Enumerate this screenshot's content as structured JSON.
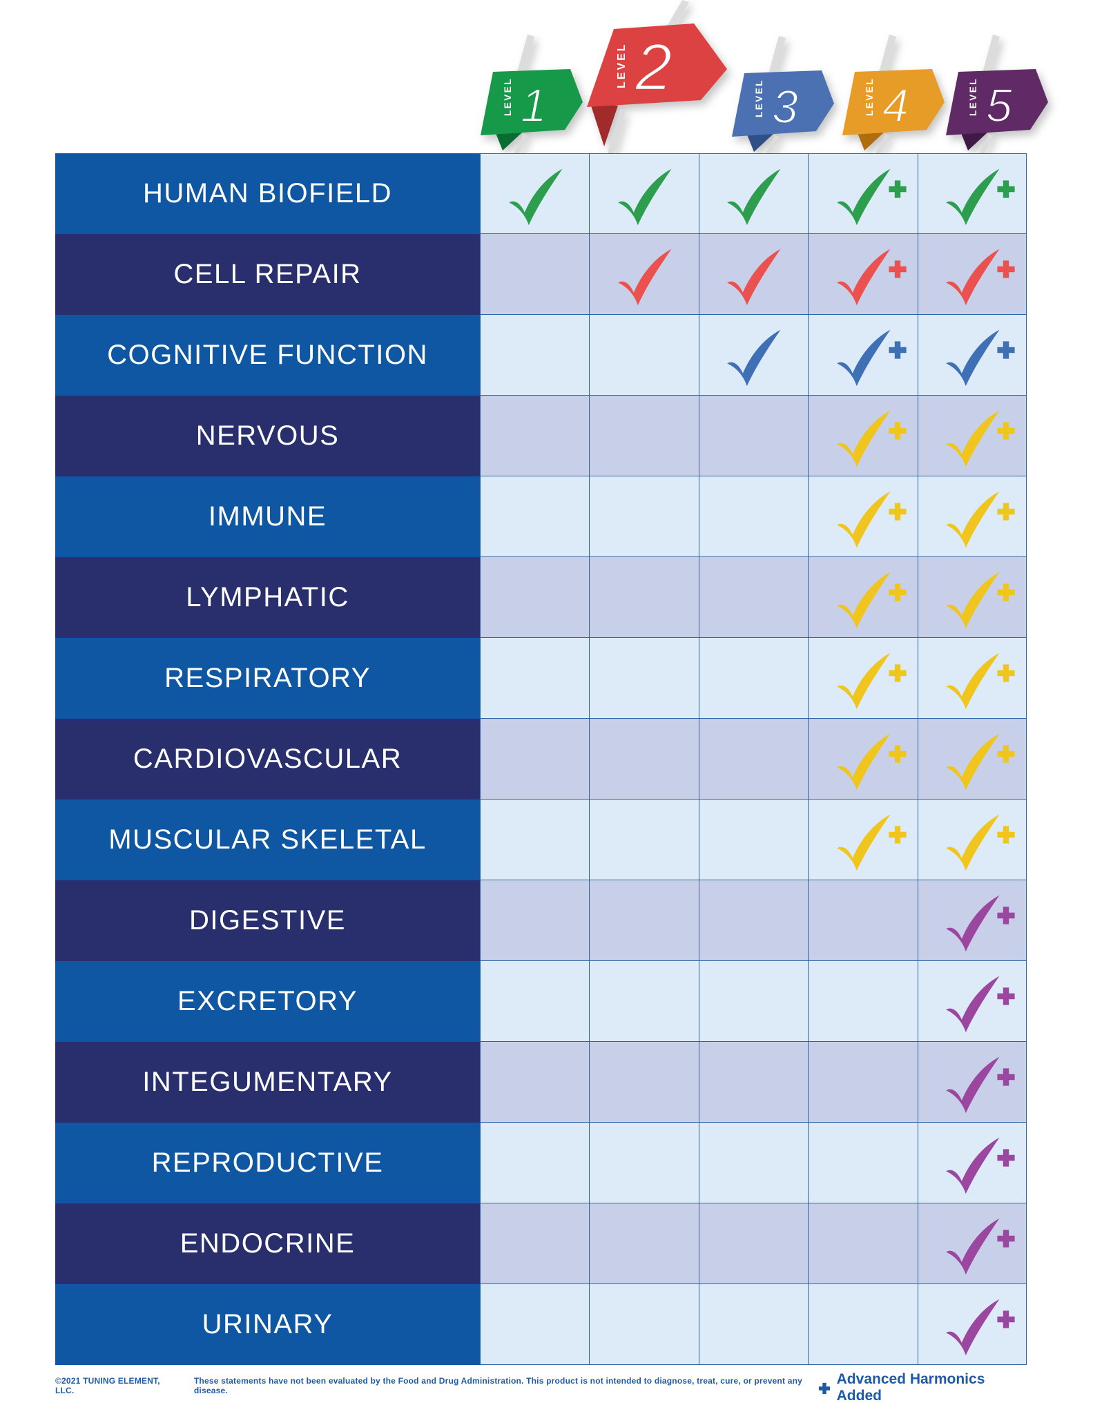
{
  "banners": {
    "word": "LEVEL",
    "items": [
      {
        "number": "1",
        "color": "#17994A",
        "fold": "#0A6C31"
      },
      {
        "number": "2",
        "color": "#DC4242",
        "fold": "#A12A2A"
      },
      {
        "number": "3",
        "color": "#4B71B3",
        "fold": "#2F4F86"
      },
      {
        "number": "4",
        "color": "#E79C27",
        "fold": "#B06D0E"
      },
      {
        "number": "5",
        "color": "#5F2A66",
        "fold": "#3F1A46"
      }
    ]
  },
  "chart_data": {
    "type": "table",
    "columns": [
      "LEVEL 1",
      "LEVEL 2",
      "LEVEL 3",
      "LEVEL 4",
      "LEVEL 5"
    ],
    "mark_colors": {
      "green": "#2D9E4D",
      "red": "#EA514F",
      "blue": "#3F6FB5",
      "yellow": "#F0C51D",
      "purple": "#9B47A0"
    },
    "rows": [
      {
        "label": "HUMAN BIOFIELD",
        "mark_color": "green",
        "values": [
          "check",
          "check",
          "check",
          "check+",
          "check+"
        ]
      },
      {
        "label": "CELL REPAIR",
        "mark_color": "red",
        "values": [
          "",
          "check",
          "check",
          "check+",
          "check+"
        ]
      },
      {
        "label": "COGNITIVE FUNCTION",
        "mark_color": "blue",
        "values": [
          "",
          "",
          "check",
          "check+",
          "check+"
        ]
      },
      {
        "label": "NERVOUS",
        "mark_color": "yellow",
        "values": [
          "",
          "",
          "",
          "check+",
          "check+"
        ]
      },
      {
        "label": "IMMUNE",
        "mark_color": "yellow",
        "values": [
          "",
          "",
          "",
          "check+",
          "check+"
        ]
      },
      {
        "label": "LYMPHATIC",
        "mark_color": "yellow",
        "values": [
          "",
          "",
          "",
          "check+",
          "check+"
        ]
      },
      {
        "label": "RESPIRATORY",
        "mark_color": "yellow",
        "values": [
          "",
          "",
          "",
          "check+",
          "check+"
        ]
      },
      {
        "label": "CARDIOVASCULAR",
        "mark_color": "yellow",
        "values": [
          "",
          "",
          "",
          "check+",
          "check+"
        ]
      },
      {
        "label": "MUSCULAR SKELETAL",
        "mark_color": "yellow",
        "values": [
          "",
          "",
          "",
          "check+",
          "check+"
        ]
      },
      {
        "label": "DIGESTIVE",
        "mark_color": "purple",
        "values": [
          "",
          "",
          "",
          "",
          "check+"
        ]
      },
      {
        "label": "EXCRETORY",
        "mark_color": "purple",
        "values": [
          "",
          "",
          "",
          "",
          "check+"
        ]
      },
      {
        "label": "INTEGUMENTARY",
        "mark_color": "purple",
        "values": [
          "",
          "",
          "",
          "",
          "check+"
        ]
      },
      {
        "label": "REPRODUCTIVE",
        "mark_color": "purple",
        "values": [
          "",
          "",
          "",
          "",
          "check+"
        ]
      },
      {
        "label": "ENDOCRINE",
        "mark_color": "purple",
        "values": [
          "",
          "",
          "",
          "",
          "check+"
        ]
      },
      {
        "label": "URINARY",
        "mark_color": "purple",
        "values": [
          "",
          "",
          "",
          "",
          "check+"
        ]
      }
    ],
    "legend": {
      "symbol": "+",
      "meaning": "Advanced Harmonics Added"
    }
  },
  "footer": {
    "copyright": "©2021 TUNING ELEMENT, LLC.",
    "disclaimer": "These statements have not been evaluated by the Food and Drug Administration. This product is not intended to diagnose, treat, cure, or prevent any disease."
  },
  "theme": {
    "label_odd": "#0F57A2",
    "label_even": "#292F6D",
    "cell_odd": "#DDEBF8",
    "cell_even": "#C7D0E8",
    "grid": "#2E63A3",
    "label_text": "#FFFFFF",
    "footer_text": "#1E5AA8",
    "slash": "#DCDCDC",
    "background": "#FFFFFF"
  }
}
